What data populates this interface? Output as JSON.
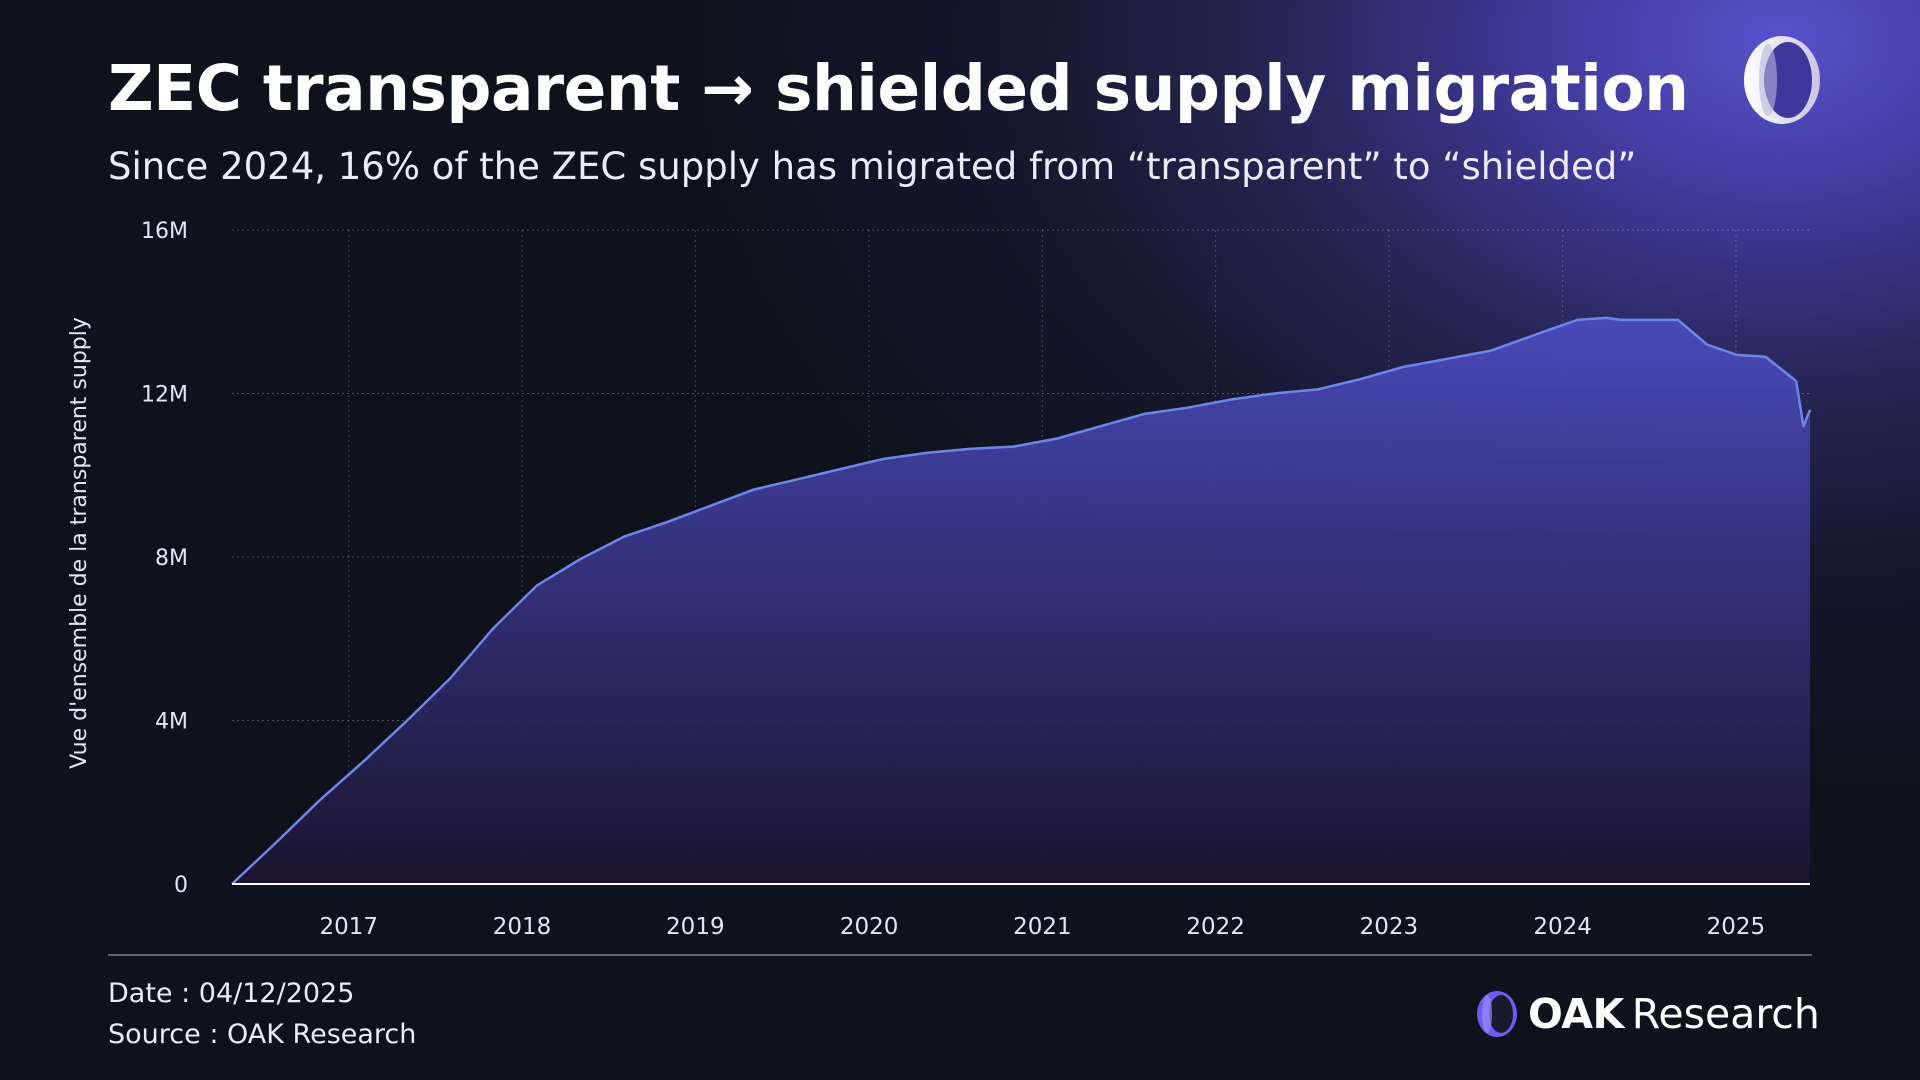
{
  "header": {
    "title": "ZEC transparent → shielded supply migration",
    "subtitle": "Since 2024, 16% of the ZEC supply has migrated from “transparent” to “shielded”"
  },
  "footer": {
    "date": "Date : 04/12/2025",
    "source": "Source : OAK Research",
    "brand_oak": "OAK",
    "brand_research": "Research"
  },
  "colors": {
    "line": "#6f86e6",
    "fill_top": "#4a4bbd",
    "fill_bottom": "#1b1430",
    "accent_logo": "#6c5cf0"
  },
  "icons": {
    "top_logo": "oak-ring-logo-icon",
    "brand_logo": "oak-ring-logo-icon"
  },
  "chart_data": {
    "type": "area",
    "title": "ZEC transparent → shielded supply migration",
    "ylabel": "Vue d'ensemble de la transparent supply",
    "xlabel": "",
    "ylim": [
      0,
      16000000
    ],
    "xlim": [
      "2016-10-28",
      "2025-12-04"
    ],
    "yticks": [
      {
        "value": 0,
        "label": "0"
      },
      {
        "value": 4000000,
        "label": "4M"
      },
      {
        "value": 8000000,
        "label": "8M"
      },
      {
        "value": 12000000,
        "label": "12M"
      },
      {
        "value": 16000000,
        "label": "16M"
      }
    ],
    "xticks": [
      {
        "value": "2017-07-01",
        "label": "2017"
      },
      {
        "value": "2018-07-01",
        "label": "2018"
      },
      {
        "value": "2019-07-01",
        "label": "2019"
      },
      {
        "value": "2020-07-01",
        "label": "2020"
      },
      {
        "value": "2021-07-01",
        "label": "2021"
      },
      {
        "value": "2022-07-01",
        "label": "2022"
      },
      {
        "value": "2023-07-01",
        "label": "2023"
      },
      {
        "value": "2024-07-01",
        "label": "2024"
      },
      {
        "value": "2025-07-01",
        "label": "2025"
      }
    ],
    "grid": true,
    "legend": "none",
    "series": [
      {
        "x": [
          "2016-10-28",
          "2017-02-01",
          "2017-05-01",
          "2017-08-01",
          "2017-11-01",
          "2018-02-01",
          "2018-05-01",
          "2018-08-01",
          "2018-11-01",
          "2019-02-01",
          "2019-05-01",
          "2019-08-01",
          "2019-11-01",
          "2020-02-01",
          "2020-05-01",
          "2020-08-01",
          "2020-11-01",
          "2021-02-01",
          "2021-05-01",
          "2021-08-01",
          "2021-11-01",
          "2022-02-01",
          "2022-05-01",
          "2022-08-01",
          "2022-11-01",
          "2023-02-01",
          "2023-05-01",
          "2023-08-01",
          "2023-11-01",
          "2024-02-01",
          "2024-04-01",
          "2024-06-01",
          "2024-08-01",
          "2024-10-01",
          "2024-11-01",
          "2025-01-01",
          "2025-03-01",
          "2025-05-01",
          "2025-07-01",
          "2025-09-01",
          "2025-10-15",
          "2025-11-05",
          "2025-11-20",
          "2025-12-04"
        ],
        "values": [
          0,
          1050000,
          2050000,
          3000000,
          4000000,
          5050000,
          6250000,
          7300000,
          7950000,
          8500000,
          8850000,
          9250000,
          9650000,
          9900000,
          10150000,
          10400000,
          10550000,
          10650000,
          10700000,
          10900000,
          11200000,
          11500000,
          11650000,
          11850000,
          12000000,
          12100000,
          12350000,
          12650000,
          12850000,
          13050000,
          13300000,
          13550000,
          13800000,
          13850000,
          13800000,
          13800000,
          13800000,
          13200000,
          12950000,
          12900000,
          12500000,
          12300000,
          11200000,
          11600000
        ]
      }
    ]
  }
}
